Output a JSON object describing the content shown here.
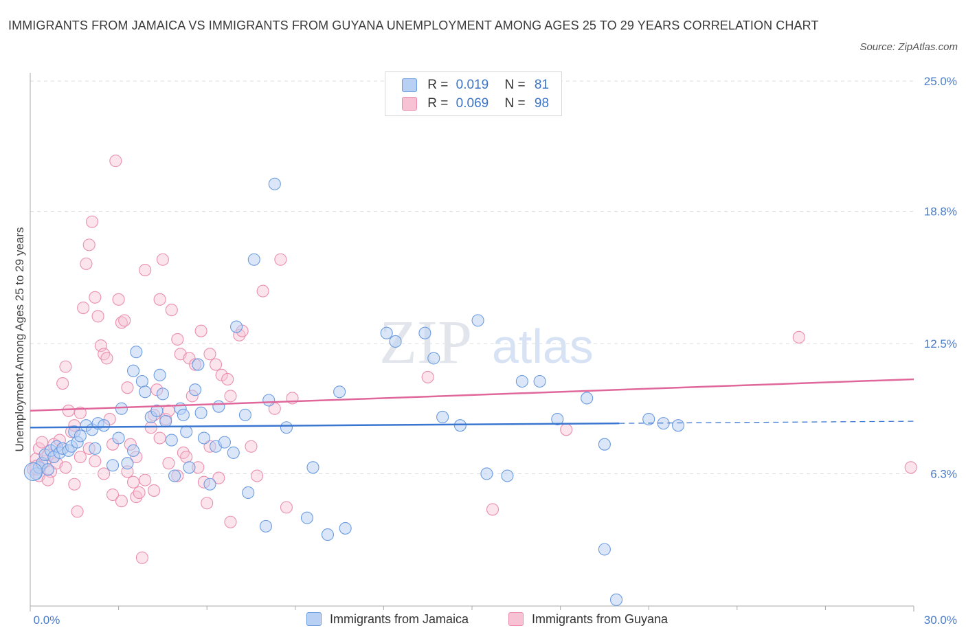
{
  "header": {
    "title": "IMMIGRANTS FROM JAMAICA VS IMMIGRANTS FROM GUYANA UNEMPLOYMENT AMONG AGES 25 TO 29 YEARS CORRELATION CHART",
    "source": "Source: ZipAtlas.com"
  },
  "watermark": {
    "zip": "ZIP",
    "atlas": "atlas"
  },
  "legend": {
    "r_label": "R =",
    "n_label": "N =",
    "jamaica": {
      "r": "0.019",
      "n": "81"
    },
    "guyana": {
      "r": "0.069",
      "n": "98"
    }
  },
  "bottom_legend": {
    "jamaica": "Immigrants from Jamaica",
    "guyana": "Immigrants from Guyana"
  },
  "colors": {
    "jamaica_fill": "#b7d0f3",
    "jamaica_stroke": "#6a9be0",
    "jamaica_line": "#3a76d0",
    "guyana_fill": "#f7c3d4",
    "guyana_stroke": "#ea8eaf",
    "guyana_line": "#e0679a",
    "tick_text": "#4a7cc9"
  },
  "chart_data": {
    "type": "scatter",
    "title": "IMMIGRANTS FROM JAMAICA VS IMMIGRANTS FROM GUYANA UNEMPLOYMENT AMONG AGES 25 TO 29 YEARS CORRELATION CHART",
    "xlabel": "",
    "ylabel": "Unemployment Among Ages 25 to 29 years",
    "xlim": [
      0,
      30
    ],
    "ylim": [
      0,
      25
    ],
    "x_tick_labels": [
      "0.0%",
      "30.0%"
    ],
    "y_ticks": [
      {
        "value": 25.0,
        "label": "25.0%"
      },
      {
        "value": 18.8,
        "label": "18.8%"
      },
      {
        "value": 12.5,
        "label": "12.5%"
      },
      {
        "value": 6.3,
        "label": "6.3%"
      }
    ],
    "grid": true,
    "series": [
      {
        "name": "Immigrants from Jamaica",
        "trend": {
          "x": [
            0,
            20
          ],
          "y": [
            8.5,
            8.7
          ],
          "dashed_to_x": 30,
          "dashed_to_y": 8.8
        },
        "points": [
          [
            0.2,
            6.3
          ],
          [
            0.3,
            6.6
          ],
          [
            0.4,
            6.8
          ],
          [
            0.5,
            7.2
          ],
          [
            0.6,
            6.5
          ],
          [
            0.7,
            7.4
          ],
          [
            0.8,
            7.1
          ],
          [
            0.9,
            7.6
          ],
          [
            1.0,
            7.3
          ],
          [
            1.1,
            7.5
          ],
          [
            1.3,
            7.4
          ],
          [
            1.4,
            7.6
          ],
          [
            1.5,
            8.3
          ],
          [
            1.6,
            7.8
          ],
          [
            1.7,
            8.1
          ],
          [
            1.9,
            8.6
          ],
          [
            2.1,
            8.4
          ],
          [
            2.2,
            7.5
          ],
          [
            2.3,
            8.7
          ],
          [
            2.5,
            8.6
          ],
          [
            2.8,
            6.7
          ],
          [
            3.0,
            8.0
          ],
          [
            3.1,
            9.4
          ],
          [
            3.3,
            6.8
          ],
          [
            3.5,
            7.4
          ],
          [
            3.6,
            12.1
          ],
          [
            3.5,
            11.2
          ],
          [
            3.8,
            10.7
          ],
          [
            3.9,
            10.2
          ],
          [
            4.1,
            9.0
          ],
          [
            4.3,
            9.3
          ],
          [
            4.4,
            11.0
          ],
          [
            4.5,
            10.1
          ],
          [
            4.6,
            8.8
          ],
          [
            4.8,
            7.9
          ],
          [
            4.9,
            6.2
          ],
          [
            5.1,
            9.4
          ],
          [
            5.2,
            9.1
          ],
          [
            5.3,
            8.3
          ],
          [
            5.4,
            6.6
          ],
          [
            5.6,
            10.3
          ],
          [
            5.7,
            11.5
          ],
          [
            5.8,
            9.2
          ],
          [
            5.9,
            8.0
          ],
          [
            6.1,
            5.8
          ],
          [
            6.3,
            7.6
          ],
          [
            6.4,
            9.5
          ],
          [
            6.6,
            7.8
          ],
          [
            6.9,
            7.3
          ],
          [
            7.0,
            13.3
          ],
          [
            7.3,
            9.1
          ],
          [
            7.4,
            5.4
          ],
          [
            7.6,
            16.5
          ],
          [
            8.0,
            3.8
          ],
          [
            8.1,
            9.8
          ],
          [
            8.3,
            20.1
          ],
          [
            8.7,
            8.5
          ],
          [
            9.4,
            4.2
          ],
          [
            9.6,
            6.6
          ],
          [
            10.1,
            3.4
          ],
          [
            10.5,
            10.2
          ],
          [
            10.7,
            3.7
          ],
          [
            12.1,
            13.0
          ],
          [
            12.4,
            12.6
          ],
          [
            13.4,
            13.0
          ],
          [
            13.7,
            11.8
          ],
          [
            14.0,
            9.0
          ],
          [
            14.6,
            8.6
          ],
          [
            15.2,
            13.6
          ],
          [
            15.5,
            6.3
          ],
          [
            16.2,
            6.2
          ],
          [
            16.7,
            10.7
          ],
          [
            17.3,
            10.7
          ],
          [
            17.9,
            8.9
          ],
          [
            18.9,
            9.9
          ],
          [
            19.5,
            7.7
          ],
          [
            19.5,
            2.7
          ],
          [
            19.9,
            0.3
          ],
          [
            21.0,
            8.9
          ],
          [
            21.5,
            8.7
          ],
          [
            22.0,
            8.6
          ]
        ]
      },
      {
        "name": "Immigrants from Guyana",
        "trend": {
          "x": [
            0,
            30
          ],
          "y": [
            9.3,
            10.8
          ]
        },
        "points": [
          [
            0.1,
            6.5
          ],
          [
            0.2,
            7.0
          ],
          [
            0.3,
            7.5
          ],
          [
            0.4,
            7.8
          ],
          [
            0.5,
            6.9
          ],
          [
            0.6,
            7.2
          ],
          [
            0.7,
            6.4
          ],
          [
            0.8,
            7.7
          ],
          [
            0.9,
            6.8
          ],
          [
            1.0,
            7.9
          ],
          [
            1.1,
            10.6
          ],
          [
            1.2,
            11.4
          ],
          [
            1.3,
            9.3
          ],
          [
            1.4,
            8.3
          ],
          [
            1.5,
            8.6
          ],
          [
            1.6,
            4.5
          ],
          [
            1.7,
            9.2
          ],
          [
            1.8,
            14.2
          ],
          [
            1.9,
            16.3
          ],
          [
            2.0,
            17.2
          ],
          [
            2.1,
            18.3
          ],
          [
            2.2,
            14.7
          ],
          [
            2.3,
            13.8
          ],
          [
            2.4,
            12.4
          ],
          [
            2.5,
            12.0
          ],
          [
            2.6,
            11.8
          ],
          [
            2.7,
            8.9
          ],
          [
            2.8,
            7.7
          ],
          [
            2.9,
            21.2
          ],
          [
            3.0,
            14.6
          ],
          [
            3.1,
            13.5
          ],
          [
            3.2,
            13.6
          ],
          [
            3.3,
            10.4
          ],
          [
            3.4,
            7.7
          ],
          [
            3.5,
            5.9
          ],
          [
            3.6,
            5.2
          ],
          [
            3.7,
            5.4
          ],
          [
            3.8,
            2.3
          ],
          [
            3.9,
            16.0
          ],
          [
            4.1,
            8.5
          ],
          [
            4.2,
            9.1
          ],
          [
            4.3,
            10.3
          ],
          [
            4.4,
            14.6
          ],
          [
            4.5,
            16.5
          ],
          [
            4.6,
            8.9
          ],
          [
            4.7,
            9.3
          ],
          [
            4.8,
            14.1
          ],
          [
            5.0,
            12.7
          ],
          [
            5.1,
            12.0
          ],
          [
            5.2,
            7.3
          ],
          [
            5.4,
            11.8
          ],
          [
            5.5,
            10.0
          ],
          [
            5.6,
            11.5
          ],
          [
            5.8,
            13.1
          ],
          [
            5.9,
            5.9
          ],
          [
            6.0,
            4.9
          ],
          [
            6.1,
            12.0
          ],
          [
            6.3,
            11.5
          ],
          [
            6.5,
            11.0
          ],
          [
            6.7,
            10.8
          ],
          [
            6.8,
            10.0
          ],
          [
            7.1,
            12.9
          ],
          [
            7.2,
            13.1
          ],
          [
            7.5,
            7.6
          ],
          [
            7.7,
            6.2
          ],
          [
            7.9,
            15.0
          ],
          [
            8.3,
            9.4
          ],
          [
            8.5,
            16.5
          ],
          [
            8.7,
            4.7
          ],
          [
            8.9,
            9.9
          ],
          [
            13.5,
            10.9
          ],
          [
            15.7,
            4.6
          ],
          [
            18.2,
            8.4
          ],
          [
            26.1,
            12.8
          ],
          [
            29.9,
            6.6
          ],
          [
            0.3,
            6.2
          ],
          [
            0.6,
            6.0
          ],
          [
            0.8,
            7.1
          ],
          [
            1.2,
            6.6
          ],
          [
            1.5,
            5.8
          ],
          [
            1.7,
            7.1
          ],
          [
            2.0,
            7.5
          ],
          [
            2.2,
            6.9
          ],
          [
            2.5,
            6.3
          ],
          [
            2.8,
            5.3
          ],
          [
            3.1,
            5.0
          ],
          [
            3.3,
            6.4
          ],
          [
            3.6,
            7.1
          ],
          [
            3.9,
            6.0
          ],
          [
            4.2,
            5.5
          ],
          [
            4.4,
            8.0
          ],
          [
            4.7,
            6.8
          ],
          [
            5.0,
            6.2
          ],
          [
            5.3,
            7.1
          ],
          [
            5.7,
            6.6
          ],
          [
            6.1,
            7.6
          ],
          [
            6.4,
            6.1
          ],
          [
            6.8,
            4.0
          ]
        ]
      }
    ]
  }
}
